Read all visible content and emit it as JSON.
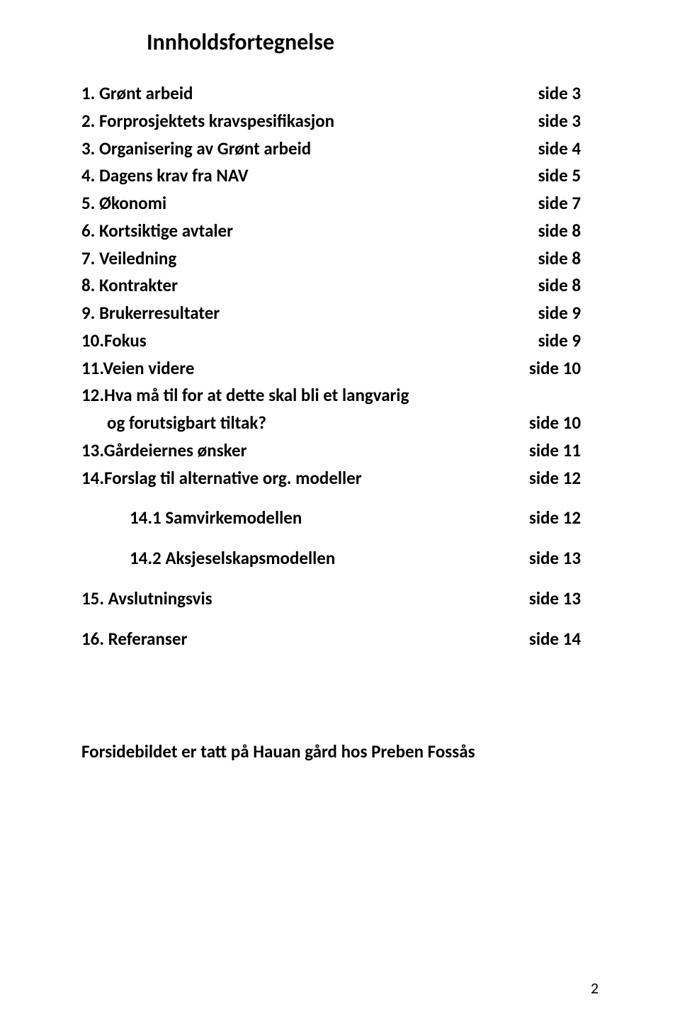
{
  "title": "Innholdsfortegnelse",
  "entries": {
    "e1": {
      "label": "1. Grønt arbeid",
      "page": "side 3"
    },
    "e2": {
      "label": "2. Forprosjektets kravspesifikasjon",
      "page": "side 3"
    },
    "e3": {
      "label": "3. Organisering av Grønt arbeid",
      "page": "side 4"
    },
    "e4": {
      "label": "4. Dagens krav fra NAV",
      "page": "side 5"
    },
    "e5": {
      "label": "5. Økonomi",
      "page": "side 7"
    },
    "e6": {
      "label": "6. Kortsiktige avtaler",
      "page": "side 8"
    },
    "e7": {
      "label": "7. Veiledning",
      "page": "side 8"
    },
    "e8": {
      "label": "8. Kontrakter",
      "page": "side 8"
    },
    "e9": {
      "label": "9. Brukerresultater",
      "page": "side 9"
    },
    "e10": {
      "label": "10.Fokus",
      "page": "side 9"
    },
    "e11": {
      "label": "11.Veien videre",
      "page": "side 10"
    },
    "e12": {
      "line1": "12.Hva må til for at dette skal bli et langvarig",
      "line2": "og forutsigbart tiltak?",
      "page": "side 10"
    },
    "e13": {
      "label": "13.Gårdeiernes ønsker",
      "page": "side 11"
    },
    "e14": {
      "label": "14.Forslag til alternative org. modeller",
      "page": "side 12"
    },
    "e14_1": {
      "label": "14.1 Samvirkemodellen",
      "page": "side 12"
    },
    "e14_2": {
      "label": "14.2 Aksjeselskapsmodellen",
      "page": "side 13"
    },
    "e15": {
      "label": "15. Avslutningsvis",
      "page": "side 13"
    },
    "e16": {
      "label": "16. Referanser",
      "page": "side 14"
    }
  },
  "footer_note": "Forsidebildet er tatt på Hauan gård hos Preben Fossås",
  "page_number": "2",
  "style": {
    "font_family": "Calibri",
    "title_fontsize_pt": 24,
    "body_fontsize_pt": 18,
    "font_weight": 700,
    "text_color": "#000000",
    "background_color": "#ffffff"
  }
}
